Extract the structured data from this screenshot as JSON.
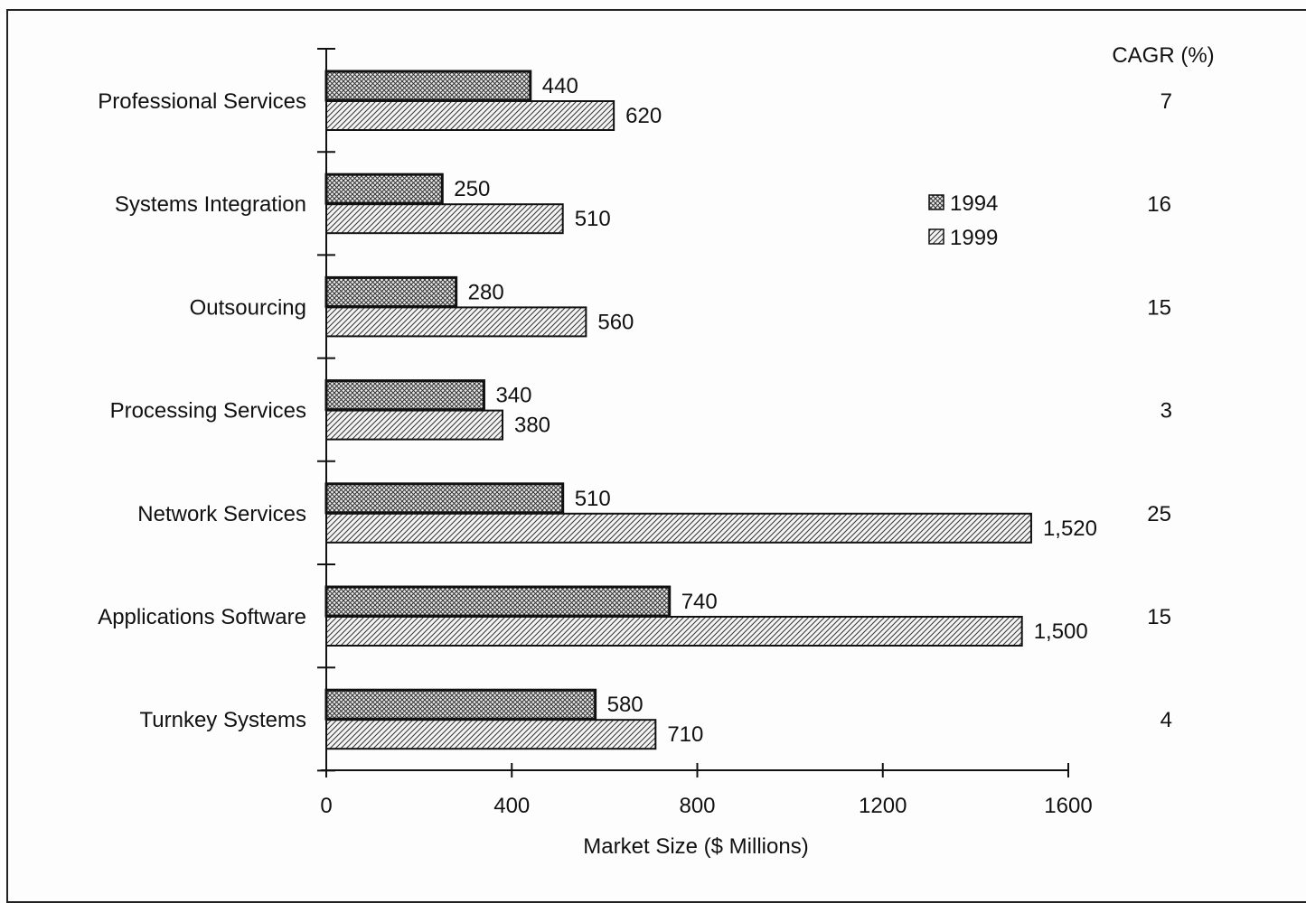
{
  "chart_data": {
    "type": "bar",
    "orientation": "horizontal",
    "categories": [
      "Professional Services",
      "Systems Integration",
      "Outsourcing",
      "Processing Services",
      "Network Services",
      "Applications Software",
      "Turnkey Systems"
    ],
    "series": [
      {
        "name": "1994",
        "values": [
          440,
          250,
          280,
          340,
          510,
          740,
          580
        ],
        "labels": [
          "440",
          "250",
          "280",
          "340",
          "510",
          "740",
          "580"
        ],
        "pattern": "crosshatch"
      },
      {
        "name": "1999",
        "values": [
          620,
          510,
          560,
          380,
          1520,
          1500,
          710
        ],
        "labels": [
          "620",
          "510",
          "560",
          "380",
          "1,520",
          "1,500",
          "710"
        ],
        "pattern": "diagonal"
      }
    ],
    "cagr_title": "CAGR (%)",
    "cagr": [
      "7",
      "16",
      "15",
      "3",
      "25",
      "15",
      "4"
    ],
    "xlabel": "Market Size ($ Millions)",
    "xlim": [
      0,
      1600
    ],
    "xticks": [
      0,
      400,
      800,
      1200,
      1600
    ],
    "legend_position": "center-right",
    "grid": false
  },
  "colors": {
    "bar_outline": "#111111",
    "bar_fill": "#f2f2f2",
    "hatch": "#333333"
  }
}
